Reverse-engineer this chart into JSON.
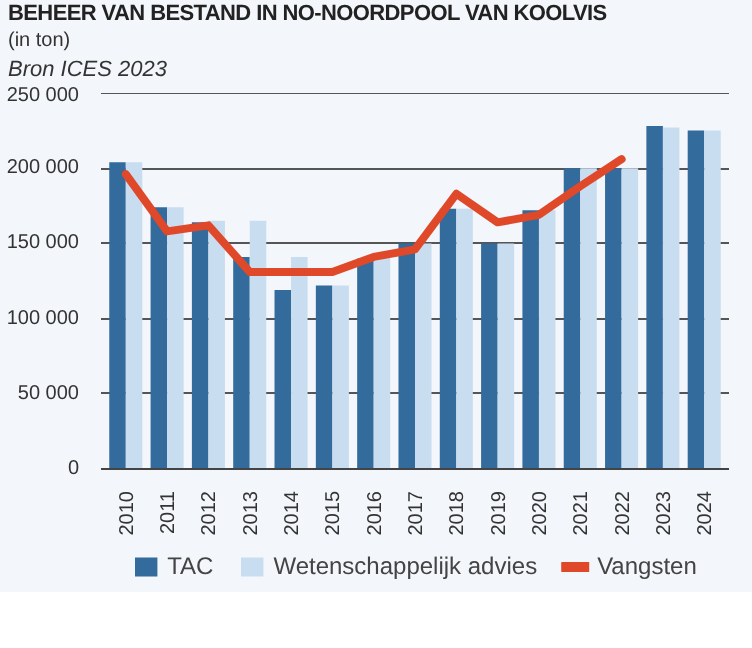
{
  "chart_data": {
    "type": "bar",
    "title": "BEHEER VAN BESTAND IN NO-NOORDPOOL VAN KOOLVIS",
    "subtitle": "(in ton)",
    "annotations": [
      "Bron ICES 2023"
    ],
    "categories": [
      "2010",
      "2011",
      "2012",
      "2013",
      "2014",
      "2015",
      "2016",
      "2017",
      "2018",
      "2019",
      "2020",
      "2021",
      "2022",
      "2023",
      "2024"
    ],
    "series": [
      {
        "name": "TAC",
        "color": "#336b9c",
        "values": [
          204000,
          174000,
          164000,
          141000,
          119000,
          122000,
          140000,
          150000,
          173000,
          150000,
          172000,
          200000,
          200000,
          228000,
          225000
        ]
      },
      {
        "name": "Wetenschappelijk advies",
        "color": "#c9ddf0",
        "values": [
          204000,
          174000,
          165000,
          165000,
          141000,
          122000,
          141000,
          150000,
          173000,
          150000,
          172000,
          200000,
          200000,
          227000,
          225000
        ]
      },
      {
        "name": "Vangsten",
        "type": "line",
        "color": "#e0482a",
        "values": [
          196000,
          158000,
          162000,
          131000,
          131000,
          131000,
          141000,
          146000,
          183000,
          164000,
          169000,
          188000,
          206000,
          null,
          null
        ]
      }
    ],
    "ylim": [
      0,
      250000
    ],
    "yticks": [
      {
        "value": 0,
        "label": "0"
      },
      {
        "value": 50000,
        "label": "50 000"
      },
      {
        "value": 100000,
        "label": "100 000"
      },
      {
        "value": 150000,
        "label": "150 000"
      },
      {
        "value": 200000,
        "label": "200 000"
      },
      {
        "value": 250000,
        "label": "250 000"
      }
    ],
    "grid": "y",
    "legend": "bottom"
  }
}
